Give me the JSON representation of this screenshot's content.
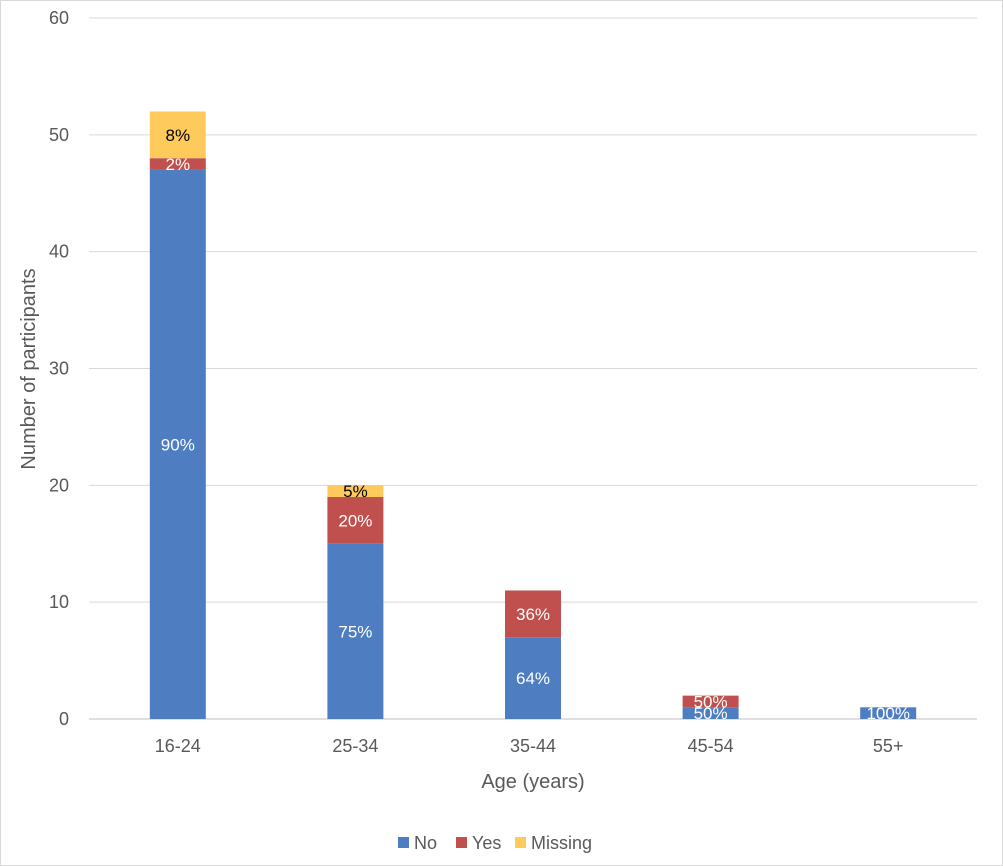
{
  "chart_data": {
    "type": "bar",
    "stacked": true,
    "categories": [
      "16-24",
      "25-34",
      "35-44",
      "45-54",
      "55+"
    ],
    "series": [
      {
        "name": "No",
        "color": "#4E7EC1",
        "values": [
          47,
          15,
          7,
          1,
          1
        ],
        "labels": [
          "90%",
          "75%",
          "64%",
          "50%",
          "100%"
        ]
      },
      {
        "name": "Yes",
        "color": "#C0504D",
        "values": [
          1,
          4,
          4,
          1,
          0
        ],
        "labels": [
          "2%",
          "20%",
          "36%",
          "50%",
          ""
        ]
      },
      {
        "name": "Missing",
        "color": "#FFCA5C",
        "values": [
          4,
          1,
          0,
          0,
          0
        ],
        "labels": [
          "8%",
          "5%",
          "",
          "",
          ""
        ]
      }
    ],
    "xlabel": "Age (years)",
    "ylabel": "Number of participants",
    "ylim": [
      0,
      60
    ],
    "yticks": [
      0,
      10,
      20,
      30,
      40,
      50,
      60
    ],
    "grid": true,
    "legend": "bottom"
  }
}
